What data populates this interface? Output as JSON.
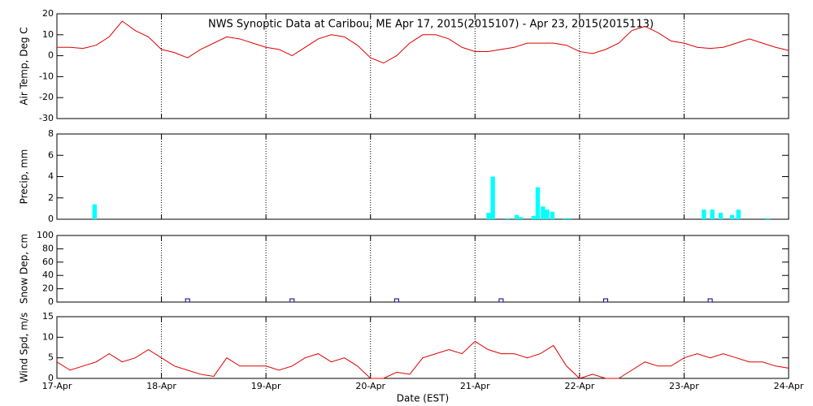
{
  "chart_data": [
    {
      "type": "line",
      "title": "NWS Synoptic Data at Caribou, ME   Apr 17, 2015(2015107) - Apr 23, 2015(2015113)",
      "ylabel": "Air Temp, Deg C",
      "color": "#dd0000",
      "grid": "x",
      "xlim": [
        0,
        7
      ],
      "xticks": [
        0,
        1,
        2,
        3,
        4,
        5,
        6,
        7
      ],
      "ylim": [
        -30,
        20
      ],
      "yticks": [
        -30,
        -20,
        -10,
        0,
        10,
        20
      ],
      "x": [
        0,
        0.125,
        0.25,
        0.375,
        0.5,
        0.625,
        0.75,
        0.875,
        1,
        1.125,
        1.25,
        1.375,
        1.5,
        1.625,
        1.75,
        1.875,
        2,
        2.125,
        2.25,
        2.375,
        2.5,
        2.625,
        2.75,
        2.875,
        3,
        3.125,
        3.25,
        3.375,
        3.5,
        3.625,
        3.75,
        3.875,
        4,
        4.125,
        4.25,
        4.375,
        4.5,
        4.625,
        4.75,
        4.875,
        5,
        5.125,
        5.25,
        5.375,
        5.5,
        5.625,
        5.75,
        5.875,
        6,
        6.125,
        6.25,
        6.375,
        6.5,
        6.625,
        6.75,
        6.875,
        7
      ],
      "values": [
        4,
        4,
        3.5,
        5,
        9,
        16.5,
        12,
        9,
        3,
        1.5,
        -1,
        3,
        6,
        9,
        8,
        6,
        4,
        3,
        0,
        4,
        8,
        10,
        9,
        5,
        -1,
        -3.5,
        0,
        6,
        10,
        10,
        8,
        4,
        2,
        2,
        3,
        4,
        6,
        6,
        6,
        5,
        2,
        1,
        3,
        6,
        12,
        14,
        11,
        7,
        6,
        4,
        3.5,
        4,
        6,
        8,
        6,
        4,
        2.5
      ]
    },
    {
      "type": "bar",
      "ylabel": "Precip, mm",
      "color": "#00ffff",
      "grid": "x",
      "xlim": [
        0,
        7
      ],
      "xticks": [
        0,
        1,
        2,
        3,
        4,
        5,
        6,
        7
      ],
      "ylim": [
        0,
        8
      ],
      "yticks": [
        0,
        2,
        4,
        6,
        8
      ],
      "x": [
        0.36,
        4.13,
        4.17,
        4.31,
        4.4,
        4.44,
        4.56,
        4.6,
        4.65,
        4.69,
        4.74,
        4.86,
        4.9,
        6.19,
        6.27,
        6.35,
        6.46,
        6.52,
        6.8
      ],
      "values": [
        1.4,
        0.6,
        4,
        0.1,
        0.4,
        0.2,
        0.3,
        3,
        1.2,
        0.9,
        0.7,
        0.1,
        0.1,
        0.9,
        0.9,
        0.6,
        0.4,
        0.9,
        0.1
      ]
    },
    {
      "type": "scatter",
      "ylabel": "Snow Dep, cm",
      "color": "#000080",
      "grid": "x",
      "xlim": [
        0,
        7
      ],
      "xticks": [
        0,
        1,
        2,
        3,
        4,
        5,
        6,
        7
      ],
      "ylim": [
        0,
        100
      ],
      "yticks": [
        0,
        20,
        40,
        60,
        80,
        100
      ],
      "x": [
        1.25,
        2.25,
        3.25,
        4.25,
        5.25,
        6.25
      ],
      "values": [
        0,
        0,
        0,
        0,
        0,
        0
      ]
    },
    {
      "type": "line",
      "ylabel": "Wind Spd, m/s",
      "xlabel": "Date (EST)",
      "color": "#dd0000",
      "grid": "x",
      "xlim": [
        0,
        7
      ],
      "xticks": [
        {
          "value": 0,
          "label": "17-Apr"
        },
        {
          "value": 1,
          "label": "18-Apr"
        },
        {
          "value": 2,
          "label": "19-Apr"
        },
        {
          "value": 3,
          "label": "20-Apr"
        },
        {
          "value": 4,
          "label": "21-Apr"
        },
        {
          "value": 5,
          "label": "22-Apr"
        },
        {
          "value": 6,
          "label": "23-Apr"
        },
        {
          "value": 7,
          "label": "24-Apr"
        }
      ],
      "ylim": [
        0,
        15
      ],
      "yticks": [
        0,
        5,
        10,
        15
      ],
      "x": [
        0,
        0.125,
        0.25,
        0.375,
        0.5,
        0.625,
        0.75,
        0.875,
        1,
        1.125,
        1.25,
        1.375,
        1.5,
        1.625,
        1.75,
        1.875,
        2,
        2.125,
        2.25,
        2.375,
        2.5,
        2.625,
        2.75,
        2.875,
        3,
        3.125,
        3.25,
        3.375,
        3.5,
        3.625,
        3.75,
        3.875,
        4,
        4.125,
        4.25,
        4.375,
        4.5,
        4.625,
        4.75,
        4.875,
        5,
        5.125,
        5.25,
        5.375,
        5.5,
        5.625,
        5.75,
        5.875,
        6,
        6.125,
        6.25,
        6.375,
        6.5,
        6.625,
        6.75,
        6.875,
        7
      ],
      "values": [
        4,
        2,
        3,
        4,
        6,
        4,
        5,
        7,
        5,
        3,
        2,
        1,
        0.5,
        5,
        3,
        3,
        3,
        2,
        3,
        5,
        6,
        4,
        5,
        3,
        0,
        0,
        1.5,
        1,
        5,
        6,
        7,
        6,
        9,
        7,
        6,
        6,
        5,
        6,
        8,
        3,
        0,
        1,
        0,
        0,
        2,
        4,
        3,
        3,
        5,
        6,
        5,
        6,
        5,
        4,
        4,
        3,
        2.5
      ]
    }
  ]
}
